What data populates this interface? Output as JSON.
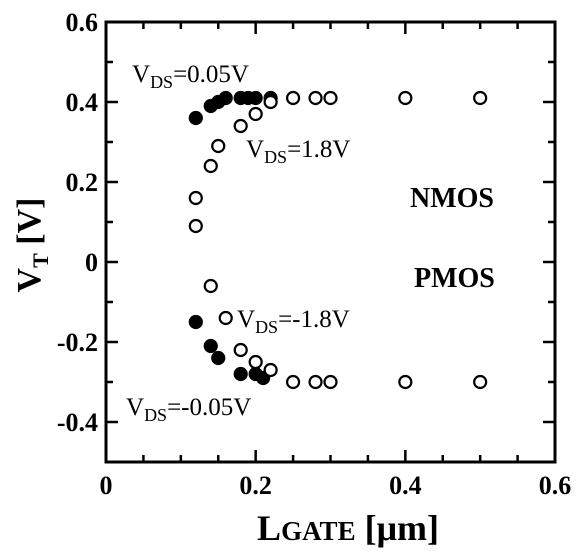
{
  "chart_data": {
    "type": "scatter",
    "title": "",
    "xlabel": "LGATE [μm]",
    "ylabel": "VT [V]",
    "xlim": [
      0,
      0.6
    ],
    "ylim": [
      -0.5,
      0.6
    ],
    "x_ticks": [
      "0",
      "0.2",
      "0.4",
      "0.6"
    ],
    "y_ticks": [
      "-0.4",
      "-0.2",
      "0",
      "0.2",
      "0.4",
      "0.6"
    ],
    "grid": false,
    "series": [
      {
        "name": "NMOS VDS=0.05V",
        "marker": "filled-circle",
        "x": [
          0.12,
          0.14,
          0.15,
          0.16,
          0.18,
          0.19,
          0.2,
          0.22
        ],
        "y": [
          0.36,
          0.39,
          0.4,
          0.41,
          0.41,
          0.41,
          0.41,
          0.41
        ]
      },
      {
        "name": "NMOS VDS=1.8V",
        "marker": "open-circle",
        "x": [
          0.12,
          0.12,
          0.14,
          0.15,
          0.18,
          0.2,
          0.22,
          0.25,
          0.28,
          0.3,
          0.4,
          0.5
        ],
        "y": [
          0.09,
          0.16,
          0.24,
          0.29,
          0.34,
          0.37,
          0.4,
          0.41,
          0.41,
          0.41,
          0.41,
          0.41
        ]
      },
      {
        "name": "PMOS VDS=-0.05V",
        "marker": "filled-circle",
        "x": [
          0.12,
          0.14,
          0.15,
          0.18,
          0.2,
          0.21
        ],
        "y": [
          -0.15,
          -0.21,
          -0.24,
          -0.28,
          -0.28,
          -0.29
        ]
      },
      {
        "name": "PMOS VDS=-1.8V",
        "marker": "open-circle",
        "x": [
          0.14,
          0.16,
          0.18,
          0.2,
          0.22,
          0.25,
          0.28,
          0.3,
          0.4,
          0.5
        ],
        "y": [
          -0.06,
          -0.14,
          -0.22,
          -0.25,
          -0.27,
          -0.3,
          -0.3,
          -0.3,
          -0.3,
          -0.3
        ]
      }
    ],
    "annotations": {
      "n_low": {
        "main": "V",
        "sub": "DS",
        "rest": "=0.05V"
      },
      "n_high": {
        "main": "V",
        "sub": "DS",
        "rest": "=1.8V"
      },
      "p_high": {
        "main": "V",
        "sub": "DS",
        "rest": "=-1.8V"
      },
      "p_low": {
        "main": "V",
        "sub": "DS",
        "rest": "=-0.05V"
      },
      "nmos": "NMOS",
      "pmos": "PMOS"
    },
    "axis_text": {
      "y_main": "V",
      "y_sub": "T",
      "y_rest": " [V]",
      "x_main": "L",
      "x_sub": "GATE",
      "x_rest": " [μm]"
    }
  }
}
